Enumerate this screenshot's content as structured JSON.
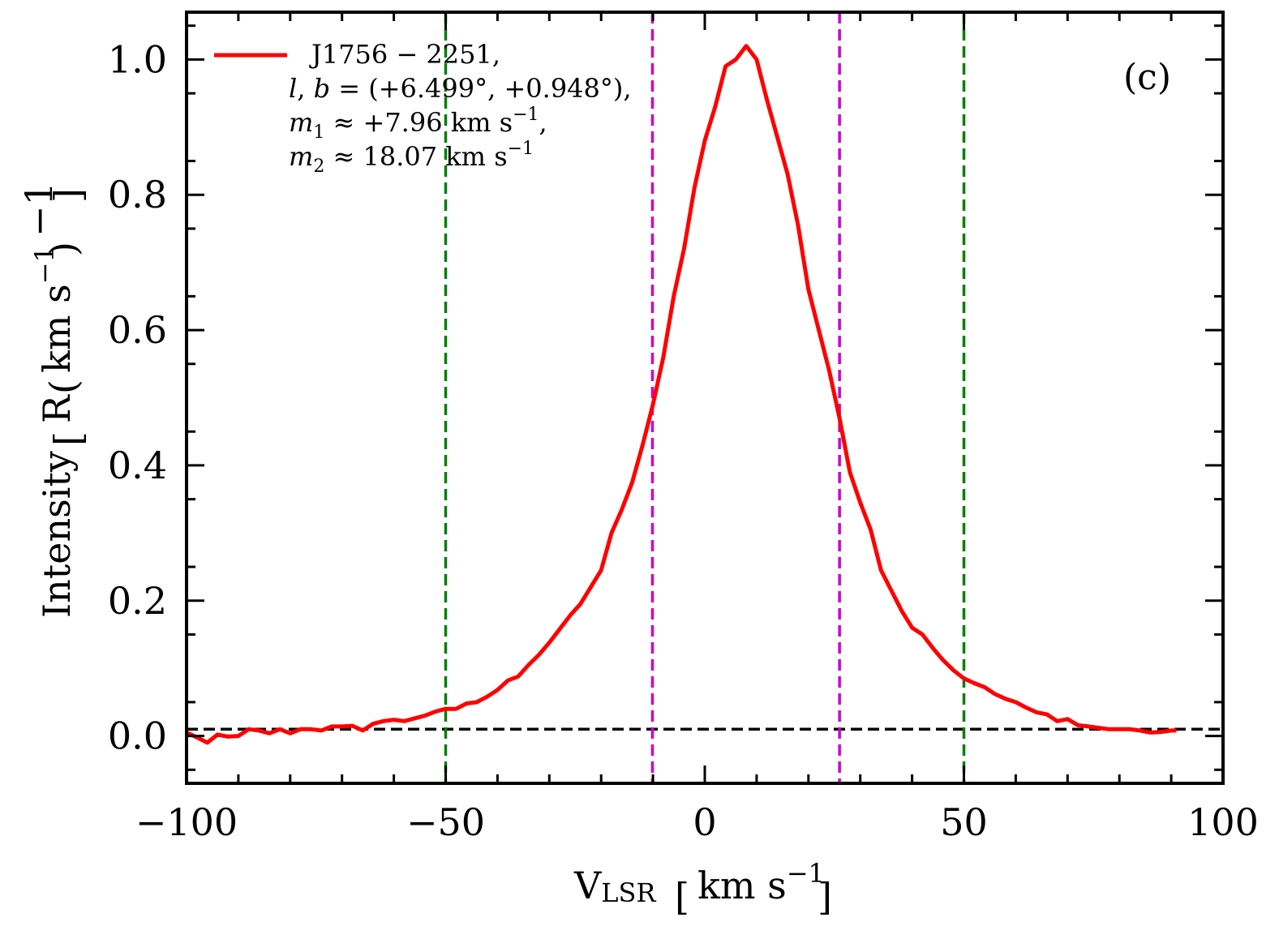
{
  "chart_data": {
    "type": "line",
    "panel_label": "(c)",
    "xlim": [
      -100,
      100
    ],
    "ylim": [
      -0.07,
      1.07
    ],
    "x_ticks": [
      -100,
      -50,
      0,
      50,
      100
    ],
    "x_tick_labels": [
      "−100",
      "−50",
      "0",
      "50",
      "100"
    ],
    "y_ticks": [
      0.0,
      0.2,
      0.4,
      0.6,
      0.8,
      1.0
    ],
    "y_tick_labels": [
      "0.0",
      "0.2",
      "0.4",
      "0.6",
      "0.8",
      "1.0"
    ],
    "xlabel": {
      "main": "V",
      "sub": "LSR",
      "unit": "km s",
      "exp": "−1"
    },
    "ylabel": {
      "main": "Intensity",
      "unit_prefix": "R",
      "unit": "km s",
      "exp": "−1",
      "outer_exp": "−1"
    },
    "legend": {
      "location": "top-left",
      "name": "J1756 − 2251,",
      "line2_prefix": "l",
      "line2_mid": ", ",
      "line2_var": "b",
      "line2_rest": " = (+6.499°, +0.948°),",
      "line3_var": "m",
      "line3_sub": "1",
      "line3_rest": " ≈ +7.96 km s",
      "line3_exp": "−1",
      "line3_end": ",",
      "line4_var": "m",
      "line4_sub": "2",
      "line4_rest": " ≈ 18.07 km s",
      "line4_exp": "−1"
    },
    "series": [
      {
        "name": "J1756 − 2251",
        "color": "#ff0000",
        "x": [
          -100,
          -98,
          -96,
          -94,
          -92,
          -90,
          -88,
          -86,
          -84,
          -82,
          -80,
          -78,
          -76,
          -74,
          -72,
          -70,
          -68,
          -66,
          -64,
          -62,
          -60,
          -58,
          -56,
          -54,
          -52,
          -50,
          -48,
          -46,
          -44,
          -42,
          -40,
          -38,
          -36,
          -34,
          -32,
          -30,
          -28,
          -26,
          -24,
          -22,
          -20,
          -18,
          -16,
          -14,
          -12,
          -10,
          -8,
          -6,
          -4,
          -2,
          0,
          2,
          4,
          6,
          8,
          10,
          12,
          14,
          16,
          18,
          20,
          22,
          24,
          26,
          28,
          30,
          32,
          34,
          36,
          38,
          40,
          42,
          44,
          46,
          48,
          50,
          52,
          54,
          56,
          58,
          60,
          62,
          64,
          66,
          68,
          70,
          72,
          74,
          76,
          78,
          80,
          82,
          84,
          86,
          88,
          90,
          91
        ],
        "y": [
          0.005,
          -0.002,
          -0.01,
          0.002,
          -0.001,
          0.0,
          0.01,
          0.008,
          0.004,
          0.01,
          0.004,
          0.01,
          0.01,
          0.008,
          0.014,
          0.014,
          0.015,
          0.008,
          0.018,
          0.022,
          0.024,
          0.022,
          0.026,
          0.03,
          0.036,
          0.04,
          0.04,
          0.048,
          0.05,
          0.058,
          0.068,
          0.082,
          0.088,
          0.105,
          0.12,
          0.138,
          0.158,
          0.178,
          0.195,
          0.22,
          0.245,
          0.3,
          0.335,
          0.375,
          0.43,
          0.49,
          0.56,
          0.65,
          0.72,
          0.81,
          0.88,
          0.93,
          0.99,
          1.0,
          1.02,
          1.0,
          0.94,
          0.885,
          0.83,
          0.755,
          0.66,
          0.6,
          0.54,
          0.47,
          0.39,
          0.345,
          0.305,
          0.245,
          0.215,
          0.185,
          0.16,
          0.15,
          0.13,
          0.112,
          0.097,
          0.085,
          0.078,
          0.072,
          0.062,
          0.055,
          0.05,
          0.042,
          0.035,
          0.032,
          0.022,
          0.025,
          0.016,
          0.014,
          0.012,
          0.01,
          0.01,
          0.01,
          0.008,
          0.005,
          0.006,
          0.008,
          0.008
        ]
      }
    ],
    "reference_lines": [
      {
        "orientation": "horizontal",
        "value": 0.01,
        "color": "#000000",
        "style": "dashed"
      },
      {
        "orientation": "vertical",
        "value": -50,
        "color": "#008000",
        "style": "dashed"
      },
      {
        "orientation": "vertical",
        "value": 50,
        "color": "#008000",
        "style": "dashed"
      },
      {
        "orientation": "vertical",
        "value": -10.1,
        "color": "#cc00cc",
        "style": "dashed"
      },
      {
        "orientation": "vertical",
        "value": 26.0,
        "color": "#cc00cc",
        "style": "dashed"
      }
    ]
  }
}
